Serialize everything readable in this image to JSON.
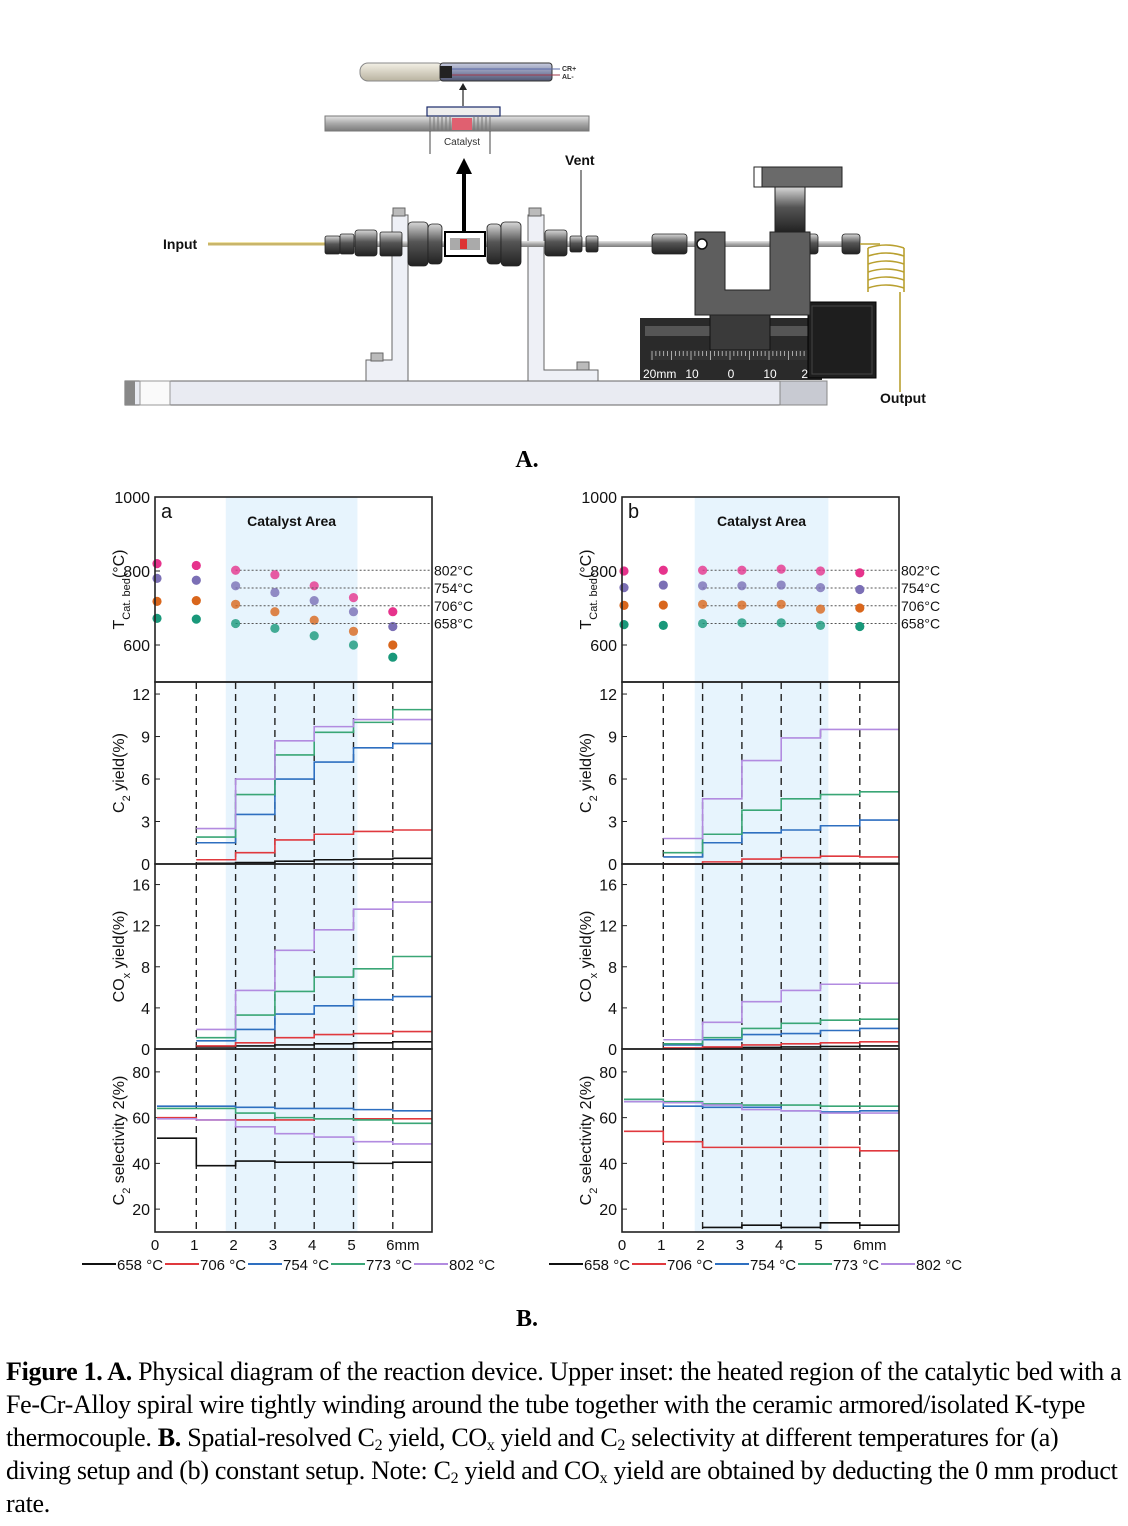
{
  "diagram": {
    "label": "A.",
    "input": "Input",
    "vent": "Vent",
    "output": "Output",
    "catalyst": "Catalyst",
    "thermocouple_pos": "CR+",
    "thermocouple_neg": "AL-",
    "ruler": [
      "20mm",
      "10",
      "0",
      "10",
      "20"
    ]
  },
  "section_b_label": "B.",
  "chart_data": [
    {
      "panel": "a",
      "type": "line",
      "area_label": "Catalyst Area",
      "catalyst_area": [
        1.75,
        5.1
      ],
      "divider_positions": [
        1,
        2,
        3,
        4,
        5,
        6
      ],
      "x_ticks": [
        "0",
        "1",
        "2",
        "3",
        "4",
        "5",
        "6mm"
      ],
      "legend": [
        {
          "label": "658 °C",
          "color": "#111111"
        },
        {
          "label": "706 °C",
          "color": "#e0393e"
        },
        {
          "label": "754 °C",
          "color": "#2e6fc0"
        },
        {
          "label": "773 °C",
          "color": "#3aa676"
        },
        {
          "label": "802 °C",
          "color": "#b28be0"
        }
      ],
      "temperature": {
        "type": "scatter",
        "ylabel": {
          "main": "T",
          "sub": "Cat. bed",
          "suffix": "(°C)"
        },
        "ylim": [
          500,
          1000
        ],
        "yticks": [
          "600",
          "800",
          "1000"
        ],
        "ytick_values": [
          600,
          800,
          1000
        ],
        "x": [
          0,
          1,
          2,
          3,
          4,
          5,
          6
        ],
        "series": [
          {
            "setpoint_label": "802°C",
            "setpoint": 802,
            "color": "#e6338c",
            "values": [
              820,
              815,
              802,
              790,
              760,
              728,
              690
            ]
          },
          {
            "setpoint_label": "754°C",
            "setpoint": 754,
            "color": "#7b6fb5",
            "values": [
              780,
              775,
              760,
              742,
              720,
              690,
              650
            ]
          },
          {
            "setpoint_label": "706°C",
            "setpoint": 706,
            "color": "#d9661c",
            "values": [
              718,
              720,
              710,
              690,
              667,
              637,
              600
            ]
          },
          {
            "setpoint_label": "658°C",
            "setpoint": 658,
            "color": "#19987a",
            "values": [
              672,
              670,
              658,
              645,
              625,
              600,
              567
            ]
          }
        ]
      },
      "c2_yield": {
        "ylabel": {
          "main": "C",
          "sub": "2",
          "suffix": " yield(%)"
        },
        "ylim": [
          0,
          12.85
        ],
        "yticks": [
          "0",
          "3",
          "6",
          "9",
          "12"
        ],
        "ytick_values": [
          0,
          3,
          6,
          9,
          12
        ],
        "x_start": 1,
        "values": [
          [
            0.05,
            0.1,
            0.2,
            0.3,
            0.35,
            0.4
          ],
          [
            0.3,
            0.8,
            1.7,
            2.1,
            2.3,
            2.4
          ],
          [
            1.5,
            3.5,
            6.0,
            7.2,
            8.2,
            8.5
          ],
          [
            1.9,
            4.9,
            7.7,
            9.3,
            10.0,
            10.9
          ],
          [
            2.5,
            6.0,
            8.7,
            9.7,
            10.2,
            10.2
          ]
        ]
      },
      "cox_yield": {
        "ylabel": {
          "main": "CO",
          "sub": "x",
          "suffix": " yield(%)"
        },
        "ylim": [
          0,
          18
        ],
        "yticks": [
          "0",
          "4",
          "8",
          "12",
          "16"
        ],
        "ytick_values": [
          0,
          4,
          8,
          12,
          16
        ],
        "x_start": 1,
        "values": [
          [
            0.2,
            0.3,
            0.4,
            0.5,
            0.6,
            0.7
          ],
          [
            0.3,
            0.6,
            1.1,
            1.4,
            1.5,
            1.7
          ],
          [
            0.8,
            1.9,
            3.4,
            4.2,
            4.8,
            5.1
          ],
          [
            1.1,
            3.3,
            5.6,
            7.0,
            7.8,
            9.0
          ],
          [
            1.9,
            5.7,
            9.6,
            11.6,
            13.6,
            14.3
          ]
        ]
      },
      "c2_selectivity": {
        "ylabel": {
          "main": "C",
          "sub": "2",
          "suffix": " selectivity 2(%)"
        },
        "ylim": [
          10,
          90
        ],
        "yticks": [
          "20",
          "40",
          "60",
          "80"
        ],
        "ytick_values": [
          20,
          40,
          60,
          80
        ],
        "x_start": 0,
        "values": [
          [
            51,
            39,
            41,
            40.5,
            40.5,
            40,
            40.5
          ],
          [
            60,
            59,
            59,
            59,
            59.5,
            59.5,
            59.5
          ],
          [
            65,
            65,
            64.5,
            64,
            64,
            63.5,
            63
          ],
          [
            64,
            64,
            62,
            60,
            59.5,
            59,
            57.5
          ],
          [
            59.5,
            59,
            56,
            53,
            51.5,
            49.5,
            48.5
          ]
        ]
      }
    },
    {
      "panel": "b",
      "type": "line",
      "area_label": "Catalyst Area",
      "catalyst_area": [
        1.8,
        5.2
      ],
      "divider_positions": [
        1,
        2,
        3,
        4,
        5,
        6
      ],
      "x_ticks": [
        "0",
        "1",
        "2",
        "3",
        "4",
        "5",
        "6mm"
      ],
      "legend": [
        {
          "label": "658 °C",
          "color": "#111111"
        },
        {
          "label": "706 °C",
          "color": "#e0393e"
        },
        {
          "label": "754 °C",
          "color": "#2e6fc0"
        },
        {
          "label": "773 °C",
          "color": "#3aa676"
        },
        {
          "label": "802 °C",
          "color": "#b28be0"
        }
      ],
      "temperature": {
        "type": "scatter",
        "ylabel": {
          "main": "T",
          "sub": "Cat. bed",
          "suffix": "(°C)"
        },
        "ylim": [
          500,
          1000
        ],
        "yticks": [
          "600",
          "800",
          "1000"
        ],
        "ytick_values": [
          600,
          800,
          1000
        ],
        "x": [
          0,
          1,
          2,
          3,
          4,
          5,
          6
        ],
        "series": [
          {
            "setpoint_label": "802°C",
            "setpoint": 802,
            "color": "#e6338c",
            "values": [
              800,
              802,
              802,
              802,
              805,
              800,
              795
            ]
          },
          {
            "setpoint_label": "754°C",
            "setpoint": 754,
            "color": "#7b6fb5",
            "values": [
              755,
              762,
              760,
              760,
              762,
              755,
              750
            ]
          },
          {
            "setpoint_label": "706°C",
            "setpoint": 706,
            "color": "#d9661c",
            "values": [
              707,
              708,
              710,
              708,
              710,
              697,
              700
            ]
          },
          {
            "setpoint_label": "658°C",
            "setpoint": 658,
            "color": "#19987a",
            "values": [
              655,
              653,
              658,
              660,
              660,
              653,
              650
            ]
          }
        ]
      },
      "c2_yield": {
        "ylabel": {
          "main": "C",
          "sub": "2",
          "suffix": " yield(%)"
        },
        "ylim": [
          0,
          12.85
        ],
        "yticks": [
          "0",
          "3",
          "6",
          "9",
          "12"
        ],
        "ytick_values": [
          0,
          3,
          6,
          9,
          12
        ],
        "x_start": 1,
        "values": [
          [
            0.0,
            0.0,
            0.02,
            0.03,
            0.04,
            0.05
          ],
          [
            0.0,
            0.15,
            0.35,
            0.45,
            0.55,
            0.5
          ],
          [
            0.5,
            1.5,
            2.2,
            2.4,
            2.7,
            3.1
          ],
          [
            0.8,
            2.1,
            3.8,
            4.6,
            4.9,
            5.1
          ],
          [
            1.8,
            4.6,
            7.3,
            8.9,
            9.5,
            9.5
          ]
        ]
      },
      "cox_yield": {
        "ylabel": {
          "main": "CO",
          "sub": "x",
          "suffix": " yield(%)"
        },
        "ylim": [
          0,
          18
        ],
        "yticks": [
          "0",
          "4",
          "8",
          "12",
          "16"
        ],
        "ytick_values": [
          0,
          4,
          8,
          12,
          16
        ],
        "x_start": 1,
        "values": [
          [
            0.05,
            0.1,
            0.15,
            0.2,
            0.25,
            0.3
          ],
          [
            0.1,
            0.2,
            0.4,
            0.5,
            0.6,
            0.7
          ],
          [
            0.4,
            0.9,
            1.4,
            1.5,
            1.8,
            2.0
          ],
          [
            0.5,
            1.1,
            2.0,
            2.5,
            2.8,
            2.9
          ],
          [
            0.9,
            2.6,
            4.6,
            5.7,
            6.3,
            6.4
          ]
        ]
      },
      "c2_selectivity": {
        "ylabel": {
          "main": "C",
          "sub": "2",
          "suffix": " selectivity 2(%)"
        },
        "ylim": [
          10,
          90
        ],
        "yticks": [
          "20",
          "40",
          "60",
          "80"
        ],
        "ytick_values": [
          20,
          40,
          60,
          80
        ],
        "x_start": 0,
        "values": [
          [
            null,
            null,
            12,
            13,
            12,
            14,
            13
          ],
          [
            54,
            49.5,
            47,
            47,
            47,
            47,
            45.5
          ],
          [
            67,
            65,
            64.5,
            64.5,
            63,
            62.5,
            63
          ],
          [
            68,
            67,
            66,
            65.5,
            65.5,
            65,
            65
          ],
          [
            67,
            66.5,
            65.5,
            63.5,
            63,
            62,
            62
          ]
        ]
      }
    }
  ],
  "caption": {
    "parts": [
      {
        "b": "Figure 1. A."
      },
      {
        "t": " Physical diagram of the reaction device. Upper inset: the heated region of the catalytic bed with a Fe-Cr-Alloy spiral wire tightly winding around the tube together with the ceramic armored/isolated K-type thermocouple. "
      },
      {
        "b": "B."
      },
      {
        "t": " Spatial-resolved C"
      },
      {
        "sub": "2"
      },
      {
        "t": " yield, CO"
      },
      {
        "sub": "x"
      },
      {
        "t": " yield and C"
      },
      {
        "sub": "2"
      },
      {
        "t": " selectivity at different temperatures for (a) diving setup and (b) constant setup. Note: C"
      },
      {
        "sub": "2"
      },
      {
        "t": " yield and CO"
      },
      {
        "sub": "x"
      },
      {
        "t": " yield are obtained by deducting the 0 mm product rate."
      }
    ]
  }
}
